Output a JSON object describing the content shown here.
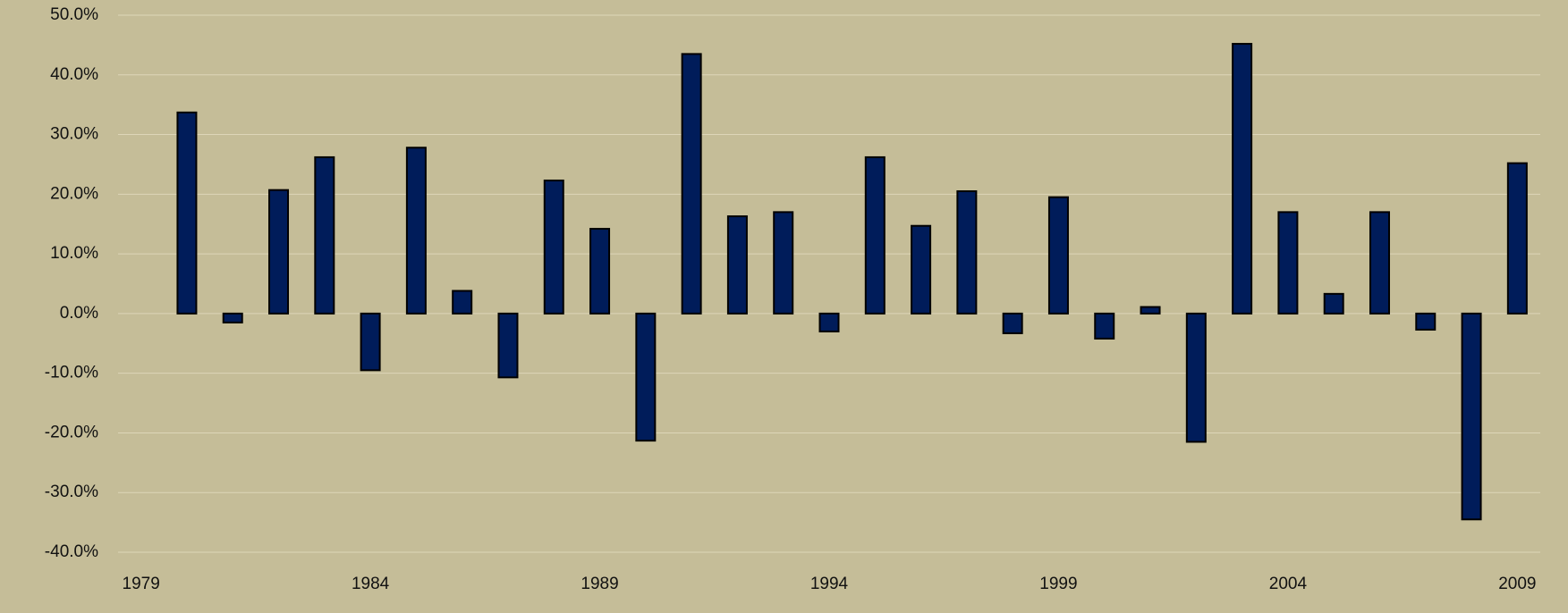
{
  "chart_data": {
    "type": "bar",
    "x": [
      1980,
      1981,
      1982,
      1983,
      1984,
      1985,
      1986,
      1987,
      1988,
      1989,
      1990,
      1991,
      1992,
      1993,
      1994,
      1995,
      1996,
      1997,
      1998,
      1999,
      2000,
      2001,
      2002,
      2003,
      2004,
      2005,
      2006,
      2007,
      2008,
      2009
    ],
    "values": [
      33.7,
      -1.5,
      20.7,
      26.2,
      -9.5,
      27.8,
      3.8,
      -10.7,
      22.3,
      14.2,
      -21.3,
      43.5,
      16.3,
      17.0,
      -3.0,
      26.2,
      14.7,
      20.5,
      -3.3,
      19.5,
      -4.2,
      1.1,
      -21.5,
      45.2,
      17.0,
      3.3,
      17.0,
      -2.7,
      -34.5,
      25.2
    ],
    "color": "#001c5a",
    "xlim": [
      1978.5,
      2009.5
    ],
    "xticks": [
      1979,
      1984,
      1989,
      1994,
      1999,
      2004,
      2009
    ],
    "ylim": [
      -40,
      50
    ],
    "yticks": [
      {
        "value": 50,
        "label": "50.0%"
      },
      {
        "value": 40,
        "label": "40.0%"
      },
      {
        "value": 30,
        "label": "30.0%"
      },
      {
        "value": 20,
        "label": "20.0%"
      },
      {
        "value": 10,
        "label": "10.0%"
      },
      {
        "value": 0,
        "label": "0.0%"
      },
      {
        "value": -10,
        "label": "-10.0%"
      },
      {
        "value": -20,
        "label": "-20.0%"
      },
      {
        "value": -30,
        "label": "-30.0%"
      },
      {
        "value": -40,
        "label": "-40.0%"
      }
    ],
    "grid": true
  }
}
